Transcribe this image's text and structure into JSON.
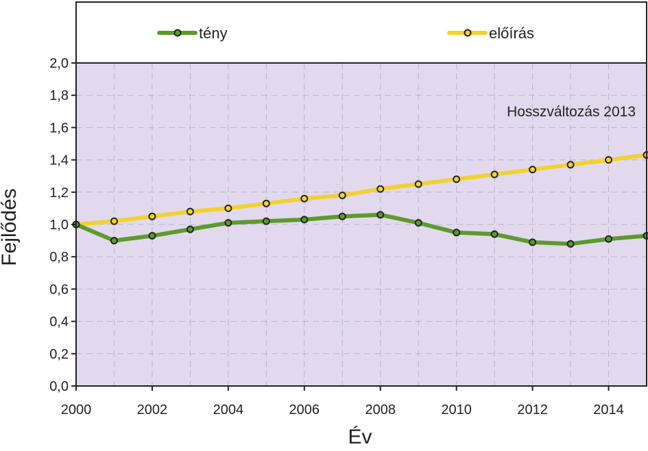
{
  "chart_data": {
    "type": "line",
    "annotation": "Hosszváltozás 2013",
    "xlabel": "Év",
    "ylabel": "Fejlődés",
    "xlim": [
      2000,
      2015
    ],
    "ylim": [
      0,
      2
    ],
    "x_ticks": [
      2000,
      2002,
      2004,
      2006,
      2008,
      2010,
      2012,
      2014
    ],
    "x_tick_labels": [
      "2000",
      "2002",
      "2004",
      "2006",
      "2008",
      "2010",
      "2012",
      "2014"
    ],
    "y_ticks": [
      0,
      0.2,
      0.4,
      0.6,
      0.8,
      1.0,
      1.2,
      1.4,
      1.6,
      1.8,
      2.0
    ],
    "y_tick_labels": [
      "0,0",
      "0,2",
      "0,4",
      "0,6",
      "0,8",
      "1,0",
      "1,2",
      "1,4",
      "1,6",
      "1,8",
      "2,0"
    ],
    "grid": true,
    "legend_position": "top",
    "background_color": "#e2d9ee",
    "x": [
      2000,
      2001,
      2002,
      2003,
      2004,
      2005,
      2006,
      2007,
      2008,
      2009,
      2010,
      2011,
      2012,
      2013,
      2014,
      2015
    ],
    "series": [
      {
        "name": "tény",
        "color": "#5e9a2e",
        "values": [
          1.0,
          0.9,
          0.93,
          0.97,
          1.01,
          1.02,
          1.03,
          1.05,
          1.06,
          1.01,
          0.95,
          0.94,
          0.89,
          0.88,
          0.91,
          0.93
        ]
      },
      {
        "name": "előírás",
        "color": "#f2d233",
        "values": [
          1.0,
          1.02,
          1.05,
          1.08,
          1.1,
          1.13,
          1.16,
          1.18,
          1.22,
          1.25,
          1.28,
          1.31,
          1.34,
          1.37,
          1.4,
          1.43
        ]
      }
    ]
  }
}
